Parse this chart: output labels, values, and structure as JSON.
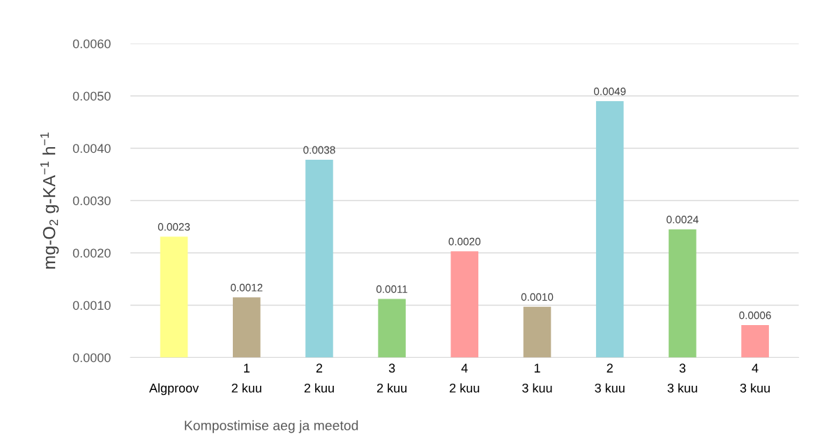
{
  "chart_data": {
    "type": "bar",
    "xlabel": "Kompostimise aeg ja meetod",
    "ylabel": "mg-O$_{2}$ g-KA$^{−1}$ h$^{−1}$",
    "categories": [
      "Algproov",
      "1\n2 kuu",
      "2\n2 kuu",
      "3\n2 kuu",
      "4\n2 kuu",
      "1\n3 kuu",
      "2\n3 kuu",
      "3\n3 kuu",
      "4\n3 kuu"
    ],
    "values": [
      0.00231,
      0.00115,
      0.00378,
      0.00112,
      0.00203,
      0.00097,
      0.0049,
      0.00245,
      0.00062
    ],
    "value_labels": [
      "0.0023",
      "0.0012",
      "0.0038",
      "0.0011",
      "0.0020",
      "0.0010",
      "0.0049",
      "0.0024",
      "0.0006"
    ],
    "colors": [
      "#ffff88",
      "#bcad8a",
      "#92d3dc",
      "#92d07c",
      "#ff9b9b",
      "#bcad8a",
      "#92d3dc",
      "#92d07c",
      "#ff9b9b"
    ],
    "ylim": [
      0,
      0.006
    ],
    "yticks": [
      {
        "value": 0,
        "label": "0.0000"
      },
      {
        "value": 0.001,
        "label": "0.0010"
      },
      {
        "value": 0.002,
        "label": "0.0020"
      },
      {
        "value": 0.003,
        "label": "0.0030"
      },
      {
        "value": 0.004,
        "label": "0.0040"
      },
      {
        "value": 0.005,
        "label": "0.0050"
      },
      {
        "value": 0.006,
        "label": "0.0060"
      }
    ],
    "grid": "y"
  }
}
